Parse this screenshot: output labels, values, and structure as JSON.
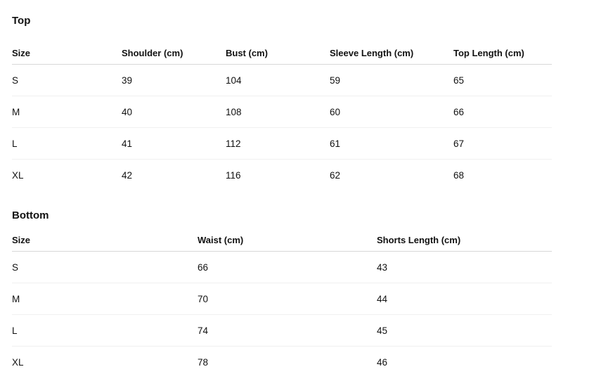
{
  "top": {
    "title": "Top",
    "headers": [
      "Size",
      "Shoulder (cm)",
      "Bust (cm)",
      "Sleeve Length (cm)",
      "Top Length (cm)"
    ],
    "rows": [
      [
        "S",
        "39",
        "104",
        "59",
        "65"
      ],
      [
        "M",
        "40",
        "108",
        "60",
        "66"
      ],
      [
        "L",
        "41",
        "112",
        "61",
        "67"
      ],
      [
        "XL",
        "42",
        "116",
        "62",
        "68"
      ]
    ]
  },
  "bottom": {
    "title": "Bottom",
    "headers": [
      "Size",
      "Waist (cm)",
      "Shorts Length (cm)"
    ],
    "rows": [
      [
        "S",
        "66",
        "43"
      ],
      [
        "M",
        "70",
        "44"
      ],
      [
        "L",
        "74",
        "45"
      ],
      [
        "XL",
        "78",
        "46"
      ]
    ]
  }
}
